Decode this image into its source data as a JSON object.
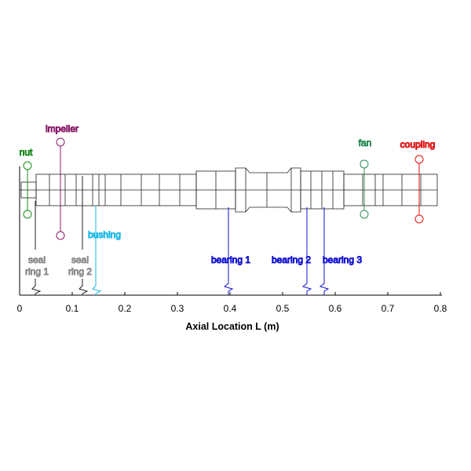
{
  "axis": {
    "title": "Axial Location L (m)",
    "ticks": [
      "0",
      "0.1",
      "0.2",
      "0.3",
      "0.4",
      "0.5",
      "0.6",
      "0.7",
      "0.8"
    ]
  },
  "components": {
    "nut": {
      "label": "nut",
      "color": "#1a8a1a"
    },
    "impeller": {
      "label": "impeller",
      "color": "#8a1a6a"
    },
    "fan": {
      "label": "fan",
      "color": "#2e8b57"
    },
    "coupling": {
      "label": "coupling",
      "color": "#e01010"
    }
  },
  "seals": {
    "seal1": {
      "line1": "seal",
      "line2": "ring 1",
      "color": "#8a8a8a"
    },
    "seal2": {
      "line1": "seal",
      "line2": "ring 2",
      "color": "#8a8a8a"
    }
  },
  "bushing": {
    "label": "bushing",
    "color": "#19b8e8"
  },
  "bearings": {
    "b1": {
      "label": "bearing 1",
      "color": "#1010d0"
    },
    "b2": {
      "label": "bearing 2",
      "color": "#1010d0"
    },
    "b3": {
      "label": "bearing 3",
      "color": "#1010d0"
    }
  }
}
